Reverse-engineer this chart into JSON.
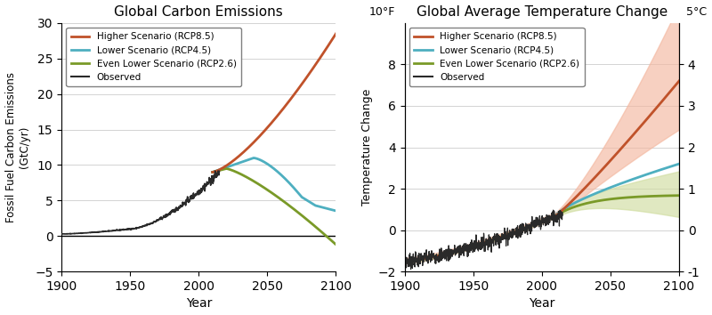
{
  "left_title": "Global Carbon Emissions",
  "right_title": "Global Average Temperature Change",
  "left_ylabel": "Fossil Fuel Carbon Emissions\n(GtC/yr)",
  "right_ylabel_left": "Temperature Change",
  "left_xlabel": "Year",
  "right_xlabel": "Year",
  "left_ylim": [
    -5,
    30
  ],
  "right_ylim": [
    -2,
    10
  ],
  "colors": {
    "rcp85": "#c0522a",
    "rcp45": "#4eafc0",
    "rcp26": "#7a9a28",
    "observed": "#2a2a2a",
    "rcp85_fill": "#f4b8a0",
    "rcp26_fill": "#d0dda0"
  },
  "legend_labels": [
    "Higher Scenario (RCP8.5)",
    "Lower Scenario (RCP4.5)",
    "Even Lower Scenario (RCP2.6)",
    "Observed"
  ]
}
